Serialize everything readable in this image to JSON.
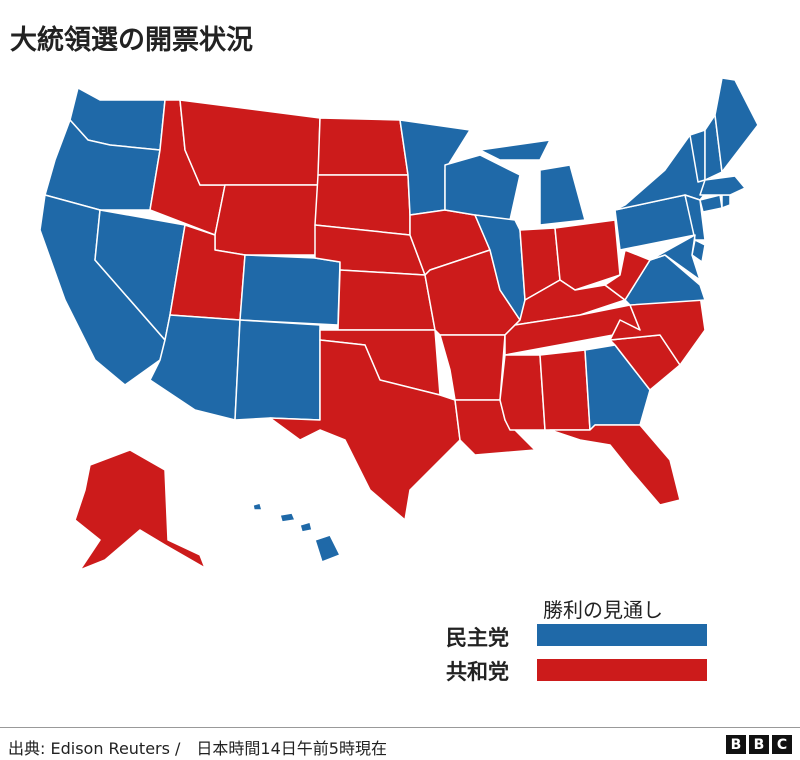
{
  "title": "大統領選の開票状況",
  "colors": {
    "democrat": "#1f69a8",
    "republican": "#cc1b1b"
  },
  "legend": {
    "title": "勝利の見通し",
    "items": [
      {
        "label": "民主党",
        "party": "democrat"
      },
      {
        "label": "共和党",
        "party": "republican"
      }
    ]
  },
  "states": [
    {
      "id": "WA",
      "party": "democrat"
    },
    {
      "id": "OR",
      "party": "democrat"
    },
    {
      "id": "CA",
      "party": "democrat"
    },
    {
      "id": "NV",
      "party": "democrat"
    },
    {
      "id": "ID",
      "party": "republican"
    },
    {
      "id": "MT",
      "party": "republican"
    },
    {
      "id": "WY",
      "party": "republican"
    },
    {
      "id": "UT",
      "party": "republican"
    },
    {
      "id": "AZ",
      "party": "democrat"
    },
    {
      "id": "CO",
      "party": "democrat"
    },
    {
      "id": "NM",
      "party": "democrat"
    },
    {
      "id": "ND",
      "party": "republican"
    },
    {
      "id": "SD",
      "party": "republican"
    },
    {
      "id": "NE",
      "party": "republican"
    },
    {
      "id": "KS",
      "party": "republican"
    },
    {
      "id": "OK",
      "party": "republican"
    },
    {
      "id": "TX",
      "party": "republican"
    },
    {
      "id": "MN",
      "party": "democrat"
    },
    {
      "id": "IA",
      "party": "republican"
    },
    {
      "id": "MO",
      "party": "republican"
    },
    {
      "id": "AR",
      "party": "republican"
    },
    {
      "id": "LA",
      "party": "republican"
    },
    {
      "id": "WI",
      "party": "democrat"
    },
    {
      "id": "IL",
      "party": "democrat"
    },
    {
      "id": "MI",
      "party": "democrat"
    },
    {
      "id": "IN",
      "party": "republican"
    },
    {
      "id": "OH",
      "party": "republican"
    },
    {
      "id": "KY",
      "party": "republican"
    },
    {
      "id": "TN",
      "party": "republican"
    },
    {
      "id": "MS",
      "party": "republican"
    },
    {
      "id": "AL",
      "party": "republican"
    },
    {
      "id": "GA",
      "party": "democrat"
    },
    {
      "id": "FL",
      "party": "republican"
    },
    {
      "id": "SC",
      "party": "republican"
    },
    {
      "id": "NC",
      "party": "republican"
    },
    {
      "id": "VA",
      "party": "democrat"
    },
    {
      "id": "WV",
      "party": "republican"
    },
    {
      "id": "PA",
      "party": "democrat"
    },
    {
      "id": "NY",
      "party": "democrat"
    },
    {
      "id": "NJ",
      "party": "democrat"
    },
    {
      "id": "DE",
      "party": "democrat"
    },
    {
      "id": "MD",
      "party": "democrat"
    },
    {
      "id": "CT",
      "party": "democrat"
    },
    {
      "id": "RI",
      "party": "democrat"
    },
    {
      "id": "MA",
      "party": "democrat"
    },
    {
      "id": "VT",
      "party": "democrat"
    },
    {
      "id": "NH",
      "party": "democrat"
    },
    {
      "id": "ME",
      "party": "democrat"
    },
    {
      "id": "AK",
      "party": "republican"
    },
    {
      "id": "HI",
      "party": "democrat"
    }
  ],
  "footer": {
    "source": "出典: Edison Reuters /　日本時間14日午前5時現在",
    "logo": [
      "B",
      "B",
      "C"
    ]
  }
}
